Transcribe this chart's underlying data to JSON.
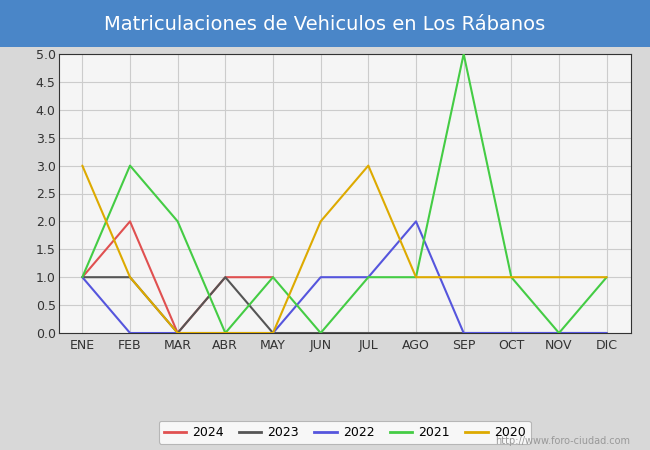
{
  "title": "Matriculaciones de Vehiculos en Los Rábanos",
  "title_bg_color": "#4a86c8",
  "months": [
    "ENE",
    "FEB",
    "MAR",
    "ABR",
    "MAY",
    "JUN",
    "JUL",
    "AGO",
    "SEP",
    "OCT",
    "NOV",
    "DIC"
  ],
  "series": {
    "2024": {
      "data": [
        1,
        2,
        0,
        1,
        1,
        null,
        null,
        null,
        null,
        null,
        null,
        null
      ],
      "color": "#e05050",
      "linewidth": 1.5
    },
    "2023": {
      "data": [
        1,
        1,
        0,
        1,
        0,
        0,
        0,
        0,
        0,
        0,
        0,
        0
      ],
      "color": "#555555",
      "linewidth": 1.5
    },
    "2022": {
      "data": [
        1,
        0,
        0,
        0,
        0,
        1,
        1,
        2,
        0,
        0,
        0,
        0
      ],
      "color": "#5555dd",
      "linewidth": 1.5
    },
    "2021": {
      "data": [
        1,
        3,
        2,
        0,
        1,
        0,
        1,
        1,
        5,
        1,
        0,
        1
      ],
      "color": "#44cc44",
      "linewidth": 1.5
    },
    "2020": {
      "data": [
        3,
        1,
        0,
        0,
        0,
        2,
        3,
        1,
        1,
        1,
        1,
        1
      ],
      "color": "#ddaa00",
      "linewidth": 1.5
    }
  },
  "ylim": [
    0,
    5.0
  ],
  "yticks": [
    0.0,
    0.5,
    1.0,
    1.5,
    2.0,
    2.5,
    3.0,
    3.5,
    4.0,
    4.5,
    5.0
  ],
  "grid_color": "#cccccc",
  "outer_bg_color": "#d8d8d8",
  "plot_bg_color": "#e8e8e8",
  "plot_inner_bg": "#f5f5f5",
  "url_text": "http://www.foro-ciudad.com",
  "legend_order": [
    "2024",
    "2023",
    "2022",
    "2021",
    "2020"
  ],
  "title_fontsize": 14,
  "tick_fontsize": 9
}
